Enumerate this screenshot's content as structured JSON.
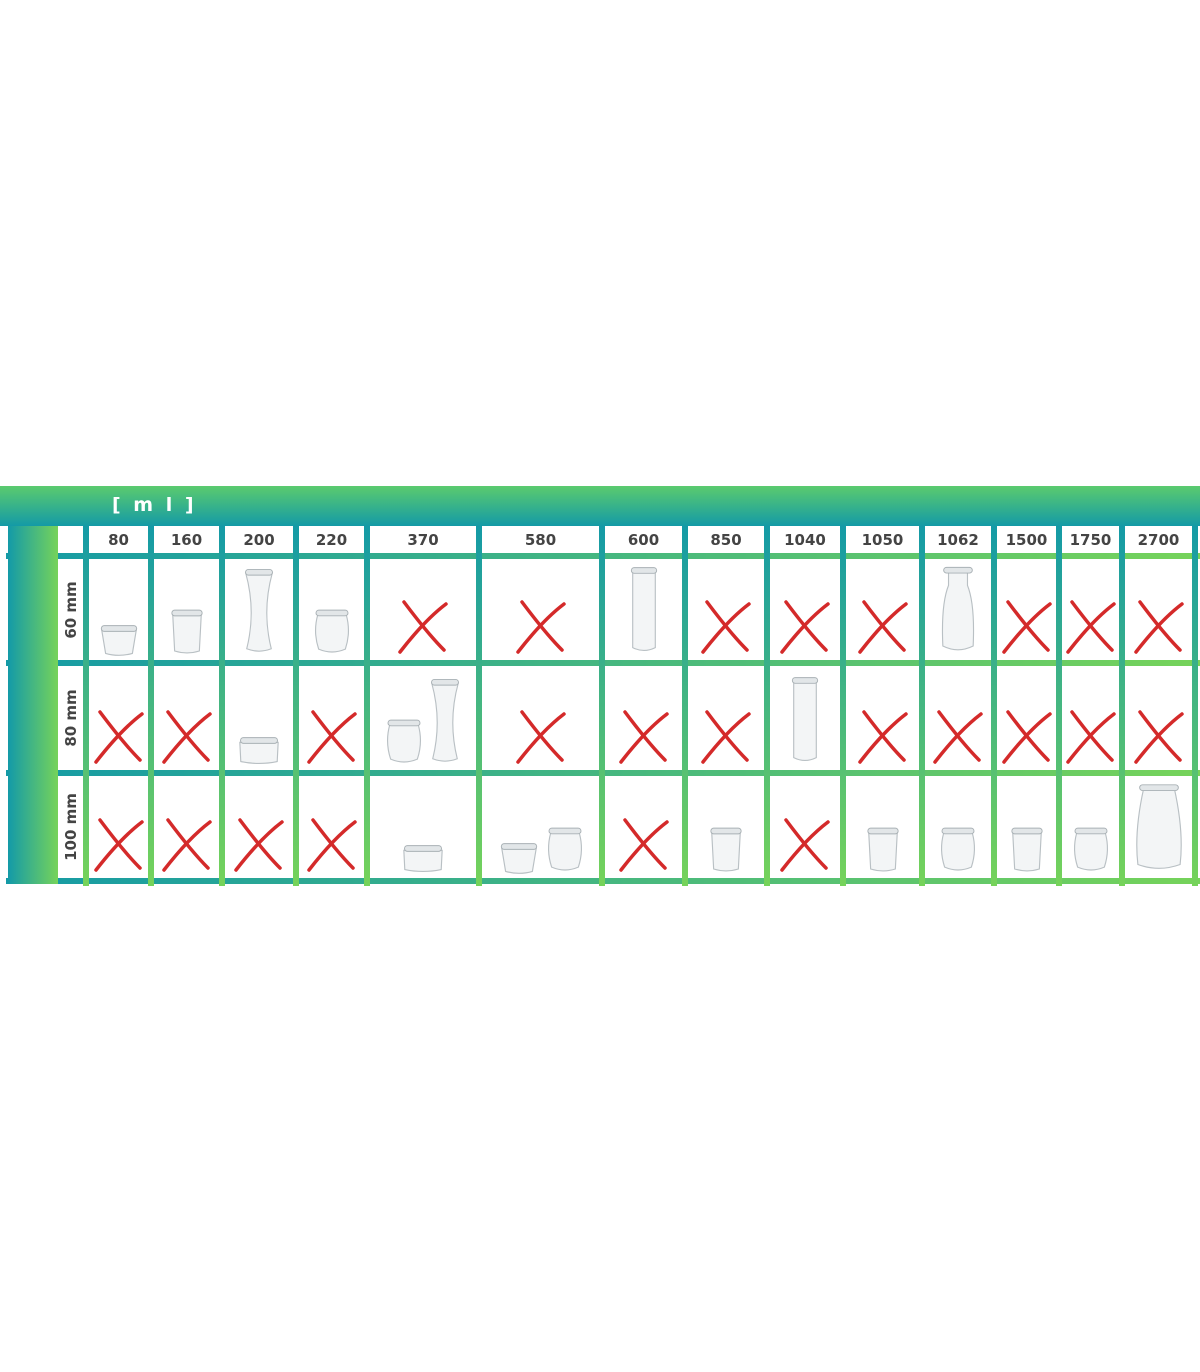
{
  "unit_label": "[ m l ]",
  "columns": [
    "80",
    "160",
    "200",
    "220",
    "370",
    "580",
    "600",
    "850",
    "1040",
    "1050",
    "1062",
    "1500",
    "1750",
    "2700"
  ],
  "rows": [
    {
      "label": "60 mm",
      "cells": [
        "jar-mold",
        "jar-straight",
        "jar-deco",
        "jar-tulip",
        "none",
        "none",
        "jar-cylinder",
        "none",
        "none",
        "none",
        "jar-juice",
        "none",
        "none",
        "none"
      ]
    },
    {
      "label": "80 mm",
      "cells": [
        "none",
        "none",
        "jar-low",
        "none",
        "jar-tulip+jar-deco",
        "none",
        "none",
        "none",
        "jar-cylinder",
        "none",
        "none",
        "none",
        "none",
        "none"
      ]
    },
    {
      "label": "100 mm",
      "cells": [
        "none",
        "none",
        "none",
        "none",
        "jar-low",
        "jar-mold+jar-tulip",
        "none",
        "jar-straight",
        "none",
        "jar-straight",
        "jar-tulip",
        "jar-straight",
        "jar-tulip",
        "jar-tall-tulip"
      ]
    }
  ],
  "colors": {
    "unavailable_mark": "#d42a2a",
    "line_teal": "#149aa6",
    "line_green": "#76d35a"
  },
  "icons": {
    "none": "red-cross-icon",
    "jar": "glass-jar-icon"
  }
}
